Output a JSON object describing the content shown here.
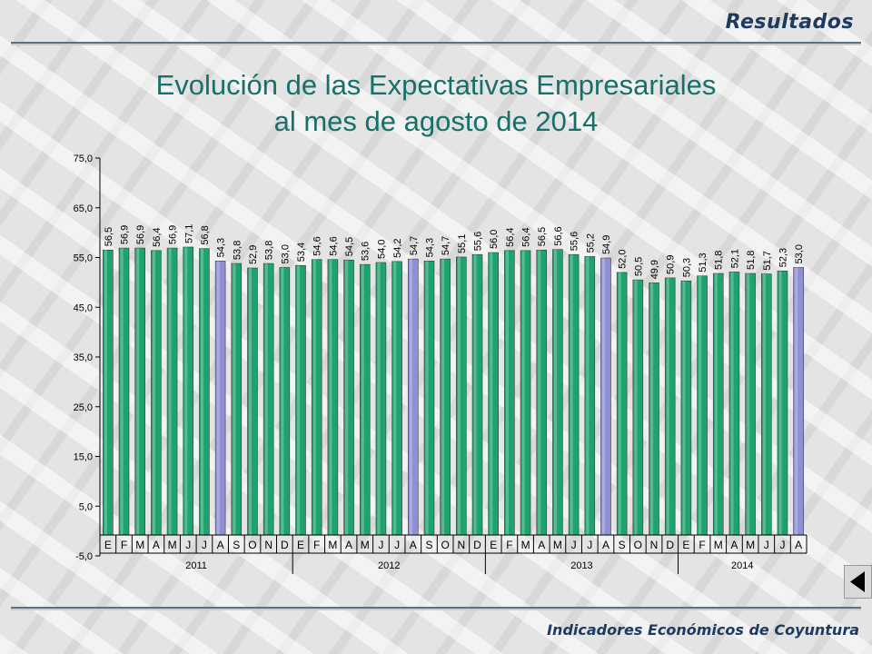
{
  "header": {
    "section_label": "Resultados",
    "title_line1": "Evolución de las Expectativas Empresariales",
    "title_line2": "al mes de agosto de 2014"
  },
  "footer": {
    "text": "Indicadores Económicos de Coyuntura"
  },
  "nav": {
    "back_icon": "triangle-left-icon"
  },
  "colors": {
    "bar_normal": "#1fa36e",
    "bar_highlight": "#8f8fd6",
    "title": "#17706a",
    "heading": "#1f3a5f"
  },
  "chart_data": {
    "type": "bar",
    "title": "Evolución de las Expectativas Empresariales al mes de agosto de 2014",
    "xlabel": "",
    "ylabel": "",
    "ylim": [
      -5.0,
      75.0
    ],
    "yticks": [
      "75,0",
      "65,0",
      "55,0",
      "45,0",
      "35,0",
      "25,0",
      "15,0",
      "5,0",
      "-5,0"
    ],
    "ytick_values": [
      75,
      65,
      55,
      45,
      35,
      25,
      15,
      5,
      -5
    ],
    "grid": false,
    "categories": [
      "E",
      "F",
      "M",
      "A",
      "M",
      "J",
      "J",
      "A",
      "S",
      "O",
      "N",
      "D",
      "E",
      "F",
      "M",
      "A",
      "M",
      "J",
      "J",
      "A",
      "S",
      "O",
      "N",
      "D",
      "E",
      "F",
      "M",
      "A",
      "M",
      "J",
      "J",
      "A",
      "S",
      "O",
      "N",
      "D",
      "E",
      "F",
      "M",
      "A",
      "M",
      "J",
      "J",
      "A"
    ],
    "years": [
      {
        "label": "2011",
        "count": 12
      },
      {
        "label": "2012",
        "count": 12
      },
      {
        "label": "2013",
        "count": 12
      },
      {
        "label": "2014",
        "count": 8
      }
    ],
    "values": [
      56.5,
      56.9,
      56.9,
      56.4,
      56.9,
      57.1,
      56.8,
      54.3,
      53.8,
      52.9,
      53.8,
      53.0,
      53.4,
      54.6,
      54.6,
      54.5,
      53.6,
      54.0,
      54.2,
      54.7,
      54.3,
      54.7,
      55.1,
      55.6,
      56.0,
      56.4,
      56.4,
      56.5,
      56.6,
      55.6,
      55.2,
      54.9,
      52.0,
      50.5,
      49.9,
      50.9,
      50.3,
      51.3,
      51.8,
      52.1,
      51.8,
      51.7,
      52.3,
      53.0
    ],
    "labels": [
      "56,5",
      "56,9",
      "56,9",
      "56,4",
      "56,9",
      "57,1",
      "56,8",
      "54,3",
      "53,8",
      "52,9",
      "53,8",
      "53,0",
      "53,4",
      "54,6",
      "54,6",
      "54,5",
      "53,6",
      "54,0",
      "54,2",
      "54,7",
      "54,3",
      "54,7",
      "55,1",
      "55,6",
      "56,0",
      "56,4",
      "56,4",
      "56,5",
      "56,6",
      "55,6",
      "55,2",
      "54,9",
      "52,0",
      "50,5",
      "49,9",
      "50,9",
      "50,3",
      "51,3",
      "51,8",
      "52,1",
      "51,8",
      "51,7",
      "52,3",
      "53,0"
    ],
    "highlight_indices": [
      7,
      19,
      31,
      43
    ]
  }
}
